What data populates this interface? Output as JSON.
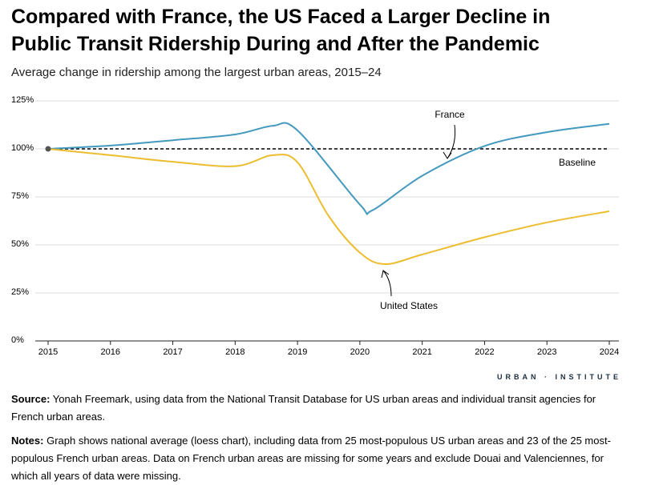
{
  "chart_data": {
    "type": "line",
    "title": "Compared with France, the US Faced a Larger Decline in Public Transit Ridership During and After the Pandemic",
    "subtitle": "Average change in ridership among the largest urban areas, 2015–24",
    "xlim": [
      2015,
      2024
    ],
    "xticks": [
      2015,
      2016,
      2017,
      2018,
      2019,
      2020,
      2021,
      2022,
      2023,
      2024
    ],
    "ylim": [
      0,
      125
    ],
    "yticks": [
      {
        "value": 0,
        "label": "0%"
      },
      {
        "value": 25,
        "label": "25%"
      },
      {
        "value": 50,
        "label": "50%"
      },
      {
        "value": 75,
        "label": "75%"
      },
      {
        "value": 100,
        "label": "100%"
      },
      {
        "value": 125,
        "label": "125%"
      }
    ],
    "grid": true,
    "reference_line": {
      "value": 100,
      "label": "Baseline"
    },
    "series": [
      {
        "name": "France",
        "color": "#4499be",
        "x": [
          2015,
          2016,
          2017,
          2018,
          2018.6,
          2019,
          2020,
          2020.2,
          2021,
          2022,
          2023,
          2024
        ],
        "values": [
          100,
          101.7,
          104.5,
          107.5,
          112,
          109.6,
          71,
          68,
          86,
          101.5,
          108.7,
          113
        ]
      },
      {
        "name": "United States",
        "color": "#ecbd2f",
        "x": [
          2015,
          2016,
          2017,
          2018,
          2018.6,
          2019,
          2019.5,
          2020,
          2020.4,
          2021,
          2022,
          2023,
          2024
        ],
        "values": [
          100,
          96.7,
          93.3,
          91,
          96.7,
          93,
          65,
          46,
          40,
          45,
          54,
          61.7,
          67.5
        ]
      }
    ],
    "brand": "URBAN · INSTITUTE",
    "source": {
      "label": "Source:",
      "text": "Yonah Freemark, using data from the National Transit Database for US urban areas and individual transit agencies for French urban areas."
    },
    "notes": {
      "label": "Notes:",
      "text": "Graph shows national average (loess chart), including data from 25 most-populous US urban areas and 23 of the 25 most-populous French urban areas. Data on French urban areas are missing for some years and exclude Douai and Valenciennes, for which all years of data were missing."
    }
  }
}
